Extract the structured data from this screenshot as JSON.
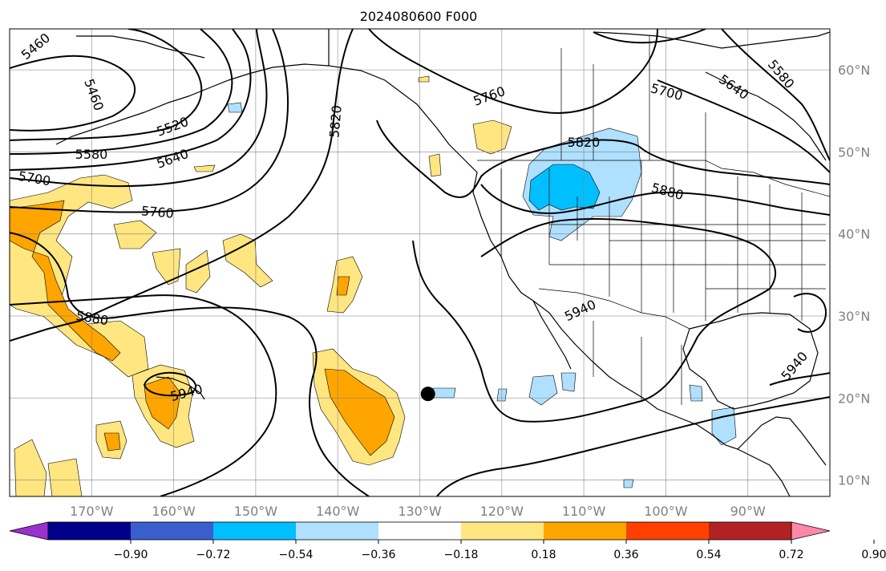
{
  "map": {
    "title": "2024080600 F000",
    "projection": "PlateCarree",
    "lon_range": [
      -180,
      -80
    ],
    "lat_range": [
      8,
      65
    ],
    "grid": true,
    "lon_ticks": [
      "170°W",
      "160°W",
      "150°W",
      "140°W",
      "130°W",
      "120°W",
      "110°W",
      "100°W",
      "90°W"
    ],
    "lat_ticks": [
      "60°N",
      "50°N",
      "40°N",
      "30°N",
      "20°N",
      "10°N"
    ],
    "contour_labels": [
      "5460",
      "5460",
      "5520",
      "5580",
      "5580",
      "5640",
      "5640",
      "5700",
      "5700",
      "5760",
      "5760",
      "5820",
      "5820",
      "5880",
      "5880",
      "5940",
      "5940",
      "5940"
    ],
    "marker": {
      "type": "storm-center",
      "lon": -129,
      "lat": 20.5,
      "color": "#000000"
    },
    "shading_colors": {
      "neg_light": "#b0e0ff",
      "neg_mid": "#00bfff",
      "pos_light": "#ffe680",
      "pos_mid": "#ffa500"
    }
  },
  "colorbar": {
    "colors": [
      "#9932cc",
      "#00008b",
      "#3a5fcd",
      "#00bfff",
      "#b0e0ff",
      "#ffffff",
      "#ffe680",
      "#ffa500",
      "#ff4000",
      "#b22222",
      "#ff88aa"
    ],
    "tick_labels": [
      "−0.90",
      "−0.72",
      "−0.54",
      "−0.36",
      "−0.18",
      "0.18",
      "0.36",
      "0.54",
      "0.72",
      "0.90"
    ]
  }
}
